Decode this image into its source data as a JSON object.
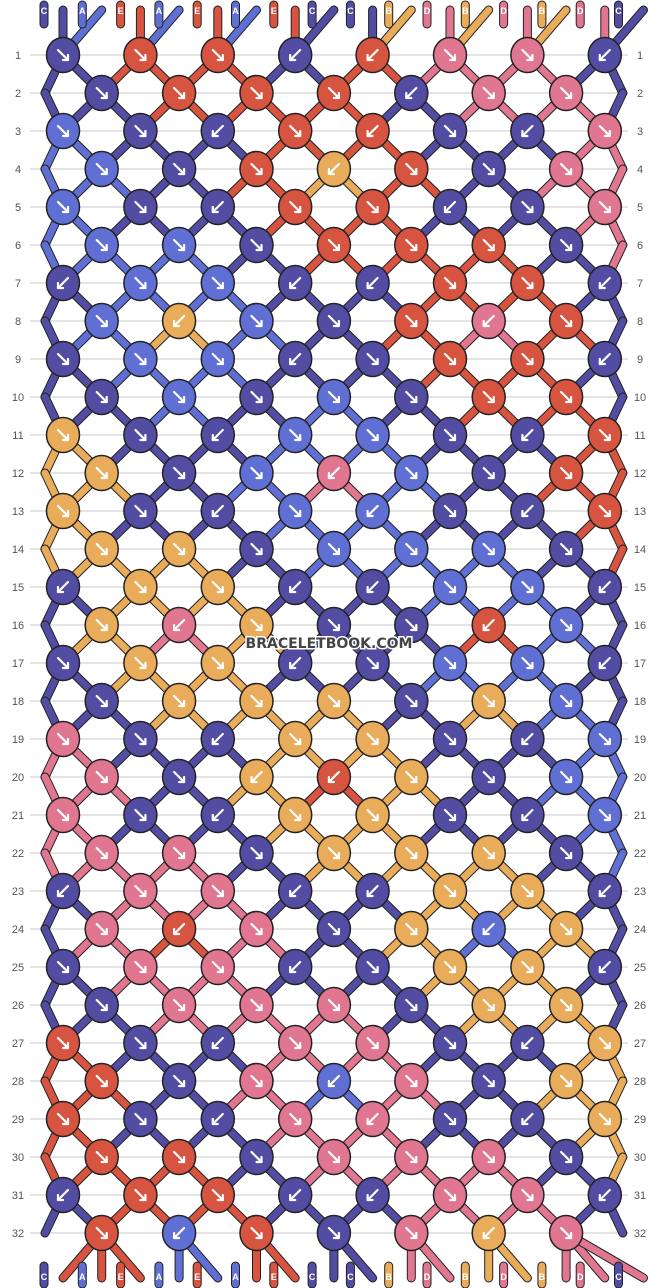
{
  "watermark": "BRACELETBOOK.COM",
  "colors": {
    "C": "#534ca3",
    "A": "#5f6fd3",
    "E": "#d65440",
    "B": "#e9ac5a",
    "D": "#e07690",
    "background": "#ffffff",
    "rowline": "#c8c8c8"
  },
  "strands": [
    "C",
    "A",
    "E",
    "A",
    "E",
    "A",
    "E",
    "C",
    "C",
    "B",
    "D",
    "B",
    "D",
    "B",
    "D",
    "C"
  ],
  "rows": 32,
  "knots": [
    [
      "C",
      "E",
      "E",
      "C",
      "E",
      "D",
      "D",
      "C"
    ],
    [
      "C",
      "E",
      "E",
      "E",
      "C",
      "D",
      "D"
    ],
    [
      "A",
      "C",
      "C",
      "E",
      "E",
      "C",
      "C",
      "D"
    ],
    [
      "A",
      "C",
      "E",
      "B",
      "E",
      "C",
      "D"
    ],
    [
      "A",
      "C",
      "C",
      "E",
      "E",
      "C",
      "C",
      "D"
    ],
    [
      "A",
      "A",
      "C",
      "E",
      "E",
      "E",
      "C"
    ],
    [
      "C",
      "A",
      "A",
      "C",
      "C",
      "E",
      "E",
      "C"
    ],
    [
      "A",
      "B",
      "A",
      "C",
      "E",
      "D",
      "E"
    ],
    [
      "C",
      "A",
      "A",
      "C",
      "C",
      "E",
      "E",
      "C"
    ],
    [
      "C",
      "A",
      "C",
      "A",
      "C",
      "E",
      "E"
    ],
    [
      "B",
      "C",
      "C",
      "A",
      "A",
      "C",
      "C",
      "E"
    ],
    [
      "B",
      "C",
      "A",
      "D",
      "A",
      "C",
      "E"
    ],
    [
      "B",
      "C",
      "C",
      "A",
      "A",
      "C",
      "C",
      "E"
    ],
    [
      "B",
      "B",
      "C",
      "A",
      "A",
      "A",
      "C"
    ],
    [
      "C",
      "B",
      "B",
      "C",
      "C",
      "A",
      "A",
      "C"
    ],
    [
      "B",
      "D",
      "B",
      "C",
      "C",
      "E",
      "A"
    ],
    [
      "C",
      "B",
      "B",
      "C",
      "C",
      "A",
      "A",
      "C"
    ],
    [
      "C",
      "B",
      "B",
      "B",
      "C",
      "B",
      "A"
    ],
    [
      "D",
      "C",
      "C",
      "B",
      "B",
      "C",
      "C",
      "A"
    ],
    [
      "D",
      "C",
      "B",
      "E",
      "B",
      "C",
      "A"
    ],
    [
      "D",
      "C",
      "C",
      "B",
      "B",
      "C",
      "C",
      "A"
    ],
    [
      "D",
      "D",
      "C",
      "B",
      "B",
      "B",
      "C"
    ],
    [
      "C",
      "D",
      "D",
      "C",
      "C",
      "B",
      "B",
      "C"
    ],
    [
      "D",
      "E",
      "D",
      "C",
      "B",
      "A",
      "B"
    ],
    [
      "C",
      "D",
      "D",
      "C",
      "C",
      "B",
      "B",
      "C"
    ],
    [
      "C",
      "D",
      "D",
      "D",
      "C",
      "B",
      "B"
    ],
    [
      "E",
      "C",
      "C",
      "D",
      "D",
      "C",
      "C",
      "B"
    ],
    [
      "E",
      "C",
      "D",
      "A",
      "D",
      "C",
      "B"
    ],
    [
      "E",
      "C",
      "C",
      "D",
      "D",
      "C",
      "C",
      "B"
    ],
    [
      "E",
      "E",
      "C",
      "D",
      "D",
      "D",
      "C"
    ],
    [
      "C",
      "E",
      "E",
      "C",
      "C",
      "D",
      "D",
      "C"
    ],
    [
      "E",
      "A",
      "E",
      "C",
      "D",
      "B",
      "D"
    ]
  ],
  "knot_dirs": [
    [
      "se",
      "se",
      "se",
      "sw",
      "sw",
      "se",
      "se",
      "sw"
    ],
    [
      "se",
      "se",
      "se",
      "se",
      "sw",
      "se",
      "se"
    ],
    [
      "se",
      "se",
      "sw",
      "se",
      "sw",
      "se",
      "sw",
      "se"
    ],
    [
      "se",
      "se",
      "se",
      "sw",
      "se",
      "se",
      "se"
    ],
    [
      "se",
      "se",
      "sw",
      "se",
      "se",
      "sw",
      "se",
      "se"
    ],
    [
      "se",
      "se",
      "se",
      "se",
      "se",
      "se",
      "se"
    ],
    [
      "sw",
      "se",
      "se",
      "sw",
      "sw",
      "se",
      "se",
      "sw"
    ],
    [
      "se",
      "sw",
      "se",
      "se",
      "se",
      "sw",
      "se"
    ],
    [
      "se",
      "se",
      "se",
      "sw",
      "se",
      "se",
      "se",
      "sw"
    ],
    [
      "se",
      "se",
      "se",
      "se",
      "se",
      "se",
      "se"
    ],
    [
      "se",
      "se",
      "sw",
      "se",
      "se",
      "se",
      "sw",
      "se"
    ],
    [
      "se",
      "se",
      "se",
      "sw",
      "se",
      "se",
      "se"
    ],
    [
      "se",
      "se",
      "sw",
      "se",
      "sw",
      "se",
      "sw",
      "se"
    ],
    [
      "se",
      "se",
      "se",
      "se",
      "se",
      "se",
      "se"
    ],
    [
      "sw",
      "se",
      "se",
      "sw",
      "sw",
      "se",
      "se",
      "sw"
    ],
    [
      "se",
      "sw",
      "se",
      "se",
      "se",
      "sw",
      "se"
    ],
    [
      "se",
      "se",
      "se",
      "sw",
      "se",
      "se",
      "se",
      "sw"
    ],
    [
      "se",
      "se",
      "se",
      "se",
      "se",
      "se",
      "se"
    ],
    [
      "se",
      "se",
      "sw",
      "se",
      "se",
      "se",
      "sw",
      "se"
    ],
    [
      "se",
      "se",
      "sw",
      "sw",
      "se",
      "se",
      "se"
    ],
    [
      "se",
      "se",
      "sw",
      "se",
      "se",
      "se",
      "sw",
      "se"
    ],
    [
      "se",
      "se",
      "se",
      "se",
      "se",
      "se",
      "se"
    ],
    [
      "sw",
      "se",
      "se",
      "sw",
      "sw",
      "se",
      "se",
      "sw"
    ],
    [
      "se",
      "sw",
      "se",
      "se",
      "se",
      "sw",
      "se"
    ],
    [
      "se",
      "se",
      "se",
      "sw",
      "se",
      "se",
      "se",
      "sw"
    ],
    [
      "se",
      "se",
      "se",
      "se",
      "se",
      "se",
      "se"
    ],
    [
      "se",
      "se",
      "sw",
      "se",
      "se",
      "se",
      "sw",
      "se"
    ],
    [
      "se",
      "se",
      "se",
      "sw",
      "se",
      "se",
      "se"
    ],
    [
      "se",
      "se",
      "sw",
      "se",
      "sw",
      "se",
      "sw",
      "se"
    ],
    [
      "se",
      "se",
      "se",
      "se",
      "se",
      "se",
      "se"
    ],
    [
      "sw",
      "se",
      "se",
      "sw",
      "sw",
      "se",
      "se",
      "sw"
    ],
    [
      "se",
      "sw",
      "se",
      "se",
      "se",
      "sw",
      "se"
    ]
  ]
}
